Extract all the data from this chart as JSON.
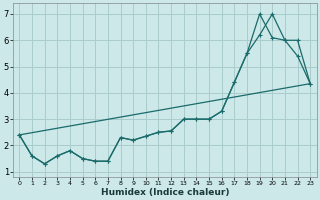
{
  "xlabel": "Humidex (Indice chaleur)",
  "bg_color": "#cce8e8",
  "grid_color": "#aacccc",
  "line_color": "#1a6b6b",
  "xlim": [
    -0.5,
    23.5
  ],
  "ylim": [
    0.8,
    7.4
  ],
  "line1_x": [
    0,
    1,
    2,
    3,
    4,
    5,
    6,
    7,
    8,
    9,
    10,
    11,
    12,
    13,
    14,
    15,
    16,
    17,
    18,
    19,
    20,
    21,
    22,
    23
  ],
  "line1_y": [
    2.4,
    1.6,
    1.3,
    1.6,
    1.8,
    1.5,
    1.4,
    1.4,
    2.3,
    2.2,
    2.35,
    2.5,
    2.55,
    3.0,
    3.0,
    3.0,
    3.3,
    4.4,
    5.5,
    6.2,
    7.0,
    6.0,
    6.0,
    4.35
  ],
  "line2_x": [
    0,
    1,
    2,
    3,
    4,
    5,
    6,
    7,
    8,
    9,
    10,
    11,
    12,
    13,
    14,
    15,
    16,
    17,
    18,
    19,
    20,
    21,
    22,
    23
  ],
  "line2_y": [
    2.4,
    1.6,
    1.3,
    1.6,
    1.8,
    1.5,
    1.4,
    1.4,
    2.3,
    2.2,
    2.35,
    2.5,
    2.55,
    3.0,
    3.0,
    3.0,
    3.3,
    4.4,
    5.5,
    7.0,
    6.1,
    6.0,
    5.4,
    4.35
  ],
  "line3_x": [
    0,
    23
  ],
  "line3_y": [
    2.4,
    4.35
  ],
  "yticks": [
    1,
    2,
    3,
    4,
    5,
    6,
    7
  ]
}
